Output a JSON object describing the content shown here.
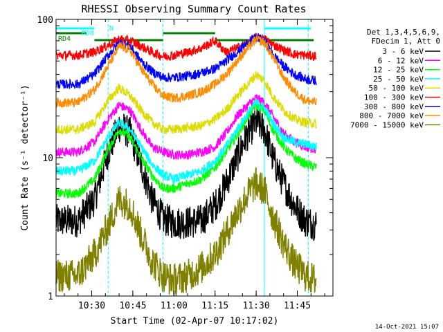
{
  "chart_data": {
    "type": "line",
    "title": "RHESSI Observing Summary Count Rates",
    "xlabel": "Start Time (02-Apr-07 10:17:02)",
    "ylabel": "Count Rate (s⁻¹ detector⁻¹)",
    "y_scale": "log",
    "ylim": [
      1,
      100
    ],
    "xlim": [
      "10:17",
      "11:58"
    ],
    "x_ticks": [
      "10:30",
      "10:45",
      "11:00",
      "11:15",
      "11:30",
      "11:45"
    ],
    "y_ticks": [
      "1",
      "10",
      "100"
    ],
    "grid": false,
    "legend_position": "right",
    "legend_header": [
      "Det 1,3,4,5,6,9,",
      "FDecim 1, Att 0"
    ],
    "series": [
      {
        "name": "3 - 6 keV",
        "color": "#000000",
        "x": [
          "10:17",
          "10:25",
          "10:31",
          "10:36",
          "10:40",
          "10:44",
          "10:48",
          "10:52",
          "10:56",
          "11:00",
          "11:05",
          "11:10",
          "11:15",
          "11:19",
          "11:23",
          "11:27",
          "11:30",
          "11:33",
          "11:36",
          "11:40",
          "11:44",
          "11:48",
          "11:52"
        ],
        "y": [
          3.5,
          3.5,
          5,
          11,
          17,
          15,
          9,
          5,
          3.6,
          3.4,
          3.4,
          3.5,
          4.5,
          6.5,
          10,
          15,
          18,
          16,
          10,
          6.5,
          4.5,
          3.5,
          3.3
        ]
      },
      {
        "name": "6 - 12 keV",
        "color": "#ff00ff",
        "x": [
          "10:17",
          "10:25",
          "10:31",
          "10:36",
          "10:40",
          "10:44",
          "10:48",
          "10:52",
          "10:56",
          "11:00",
          "11:05",
          "11:10",
          "11:15",
          "11:19",
          "11:23",
          "11:27",
          "11:30",
          "11:33",
          "11:36",
          "11:40",
          "11:44",
          "11:48",
          "11:52"
        ],
        "y": [
          11,
          11,
          13,
          19,
          24,
          22,
          16,
          12,
          11,
          10.5,
          10.5,
          11,
          12,
          15,
          20,
          24,
          27,
          25,
          20,
          15,
          13,
          12,
          11.5
        ]
      },
      {
        "name": "12 - 25 keV",
        "color": "#00ff00",
        "x": [
          "10:17",
          "10:25",
          "10:31",
          "10:36",
          "10:40",
          "10:44",
          "10:48",
          "10:52",
          "10:56",
          "11:00",
          "11:05",
          "11:10",
          "11:15",
          "11:19",
          "11:23",
          "11:27",
          "11:30",
          "11:33",
          "11:36",
          "11:40",
          "11:44",
          "11:48",
          "11:52"
        ],
        "y": [
          5.5,
          5.5,
          7,
          11.5,
          16,
          14,
          10,
          7.5,
          6,
          6,
          6.5,
          7,
          8.5,
          11,
          14.5,
          20,
          24,
          22,
          16,
          12,
          10,
          9,
          8.5
        ]
      },
      {
        "name": "25 - 50 keV",
        "color": "#00ffff",
        "x": [
          "10:17",
          "10:25",
          "10:31",
          "10:36",
          "10:40",
          "10:44",
          "10:48",
          "10:52",
          "10:56",
          "11:00",
          "11:05",
          "11:10",
          "11:15",
          "11:19",
          "11:23",
          "11:27",
          "11:30",
          "11:33",
          "11:36",
          "11:40",
          "11:44",
          "11:48",
          "11:52"
        ],
        "y": [
          8,
          8,
          9.5,
          14,
          18,
          16,
          12,
          9,
          7.5,
          7,
          7.5,
          8,
          9.5,
          12,
          16,
          21,
          25,
          23,
          18,
          14,
          13,
          12.5,
          12
        ]
      },
      {
        "name": "50 - 100 keV",
        "color": "#dcdc00",
        "x": [
          "10:17",
          "10:25",
          "10:31",
          "10:36",
          "10:40",
          "10:44",
          "10:48",
          "10:52",
          "10:56",
          "11:00",
          "11:05",
          "11:10",
          "11:15",
          "11:19",
          "11:23",
          "11:27",
          "11:30",
          "11:33",
          "11:36",
          "11:40",
          "11:44",
          "11:48",
          "11:52"
        ],
        "y": [
          16,
          16,
          18,
          26,
          32,
          28,
          22,
          18,
          16,
          16,
          16.5,
          17,
          19,
          22,
          28,
          34,
          40,
          36,
          28,
          22,
          19,
          18,
          17.5
        ]
      },
      {
        "name": "100 - 300 keV",
        "color": "#ff0000",
        "x": [
          "10:17",
          "10:25",
          "10:31",
          "10:36",
          "10:40",
          "10:44",
          "10:48",
          "10:52",
          "10:56",
          "11:00",
          "11:05",
          "11:10",
          "11:15",
          "11:19",
          "11:23",
          "11:27",
          "11:30",
          "11:33",
          "11:36",
          "11:40",
          "11:44",
          "11:48",
          "11:52"
        ],
        "y": [
          55,
          55,
          58,
          65,
          72,
          70,
          64,
          58,
          54,
          55,
          58,
          62,
          70,
          58,
          62,
          68,
          74,
          72,
          66,
          60,
          56,
          55,
          54
        ]
      },
      {
        "name": "300 - 800 keV",
        "color": "#0000ff",
        "x": [
          "10:17",
          "10:25",
          "10:31",
          "10:36",
          "10:40",
          "10:44",
          "10:48",
          "10:52",
          "10:56",
          "11:00",
          "11:05",
          "11:10",
          "11:15",
          "11:19",
          "11:23",
          "11:27",
          "11:30",
          "11:33",
          "11:36",
          "11:40",
          "11:44",
          "11:48",
          "11:52"
        ],
        "y": [
          34,
          34,
          40,
          55,
          68,
          64,
          50,
          42,
          38,
          38,
          39,
          41,
          44,
          50,
          58,
          68,
          74,
          70,
          56,
          46,
          40,
          37,
          36
        ]
      },
      {
        "name": "800 - 7000 keV",
        "color": "#ff8c00",
        "x": [
          "10:17",
          "10:25",
          "10:31",
          "10:36",
          "10:40",
          "10:44",
          "10:48",
          "10:52",
          "10:56",
          "11:00",
          "11:05",
          "11:10",
          "11:15",
          "11:19",
          "11:23",
          "11:27",
          "11:30",
          "11:33",
          "11:36",
          "11:40",
          "11:44",
          "11:48",
          "11:52"
        ],
        "y": [
          25,
          25,
          31,
          46,
          64,
          60,
          44,
          34,
          28,
          27,
          28,
          30,
          34,
          40,
          50,
          62,
          72,
          68,
          54,
          38,
          30,
          26,
          25
        ]
      },
      {
        "name": "7000 - 15000 keV",
        "color": "#808000",
        "x": [
          "10:17",
          "10:25",
          "10:31",
          "10:36",
          "10:40",
          "10:44",
          "10:48",
          "10:52",
          "10:56",
          "11:00",
          "11:05",
          "11:10",
          "11:15",
          "11:19",
          "11:23",
          "11:27",
          "11:30",
          "11:33",
          "11:36",
          "11:40",
          "11:44",
          "11:48",
          "11:52"
        ],
        "y": [
          1.4,
          1.4,
          2.0,
          3.2,
          5.0,
          4.5,
          2.8,
          1.8,
          1.4,
          1.3,
          1.4,
          1.6,
          2.0,
          2.8,
          4.0,
          5.5,
          6.5,
          5.8,
          3.8,
          2.4,
          1.7,
          1.4,
          1.3
        ]
      }
    ],
    "annotations": {
      "cyan_vlines": [
        "10:17",
        "10:36",
        "10:56",
        "11:33",
        "11:49"
      ],
      "flag_labels": [
        {
          "text": "N",
          "color": "#00ffff"
        },
        {
          "text": "RD0",
          "color": "#00ffff"
        },
        {
          "text": "RD4",
          "color": "#008000"
        }
      ],
      "cyan_segments": [
        [
          "10:17",
          "10:31"
        ],
        [
          "11:33",
          "11:50"
        ]
      ],
      "green_segments": [
        [
          "10:17",
          "10:28"
        ],
        [
          "10:31",
          "10:56"
        ],
        [
          "10:56",
          "11:15"
        ],
        [
          "11:15",
          "11:51"
        ]
      ]
    }
  },
  "footer": {
    "date": "14-Oct-2021 15:07"
  }
}
